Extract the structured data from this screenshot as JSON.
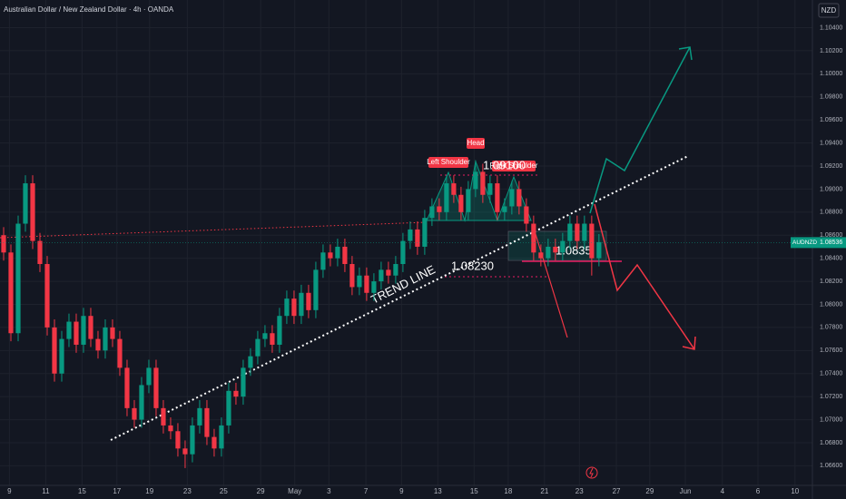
{
  "chart_data": {
    "type": "candlestick",
    "title": "Australian Dollar / New Zealand Dollar · 4h · OANDA",
    "currency": "NZD",
    "symbol": "AUDNZD",
    "last_price": 1.08536,
    "up_color": "#089981",
    "down_color": "#f23645",
    "grid": true,
    "xlim": [
      -0.5,
      111.4
    ],
    "ylim": [
      1.0643,
      1.1064
    ],
    "xticks": [
      {
        "value": 0.8,
        "label": "9"
      },
      {
        "value": 5.8,
        "label": "11"
      },
      {
        "value": 10.8,
        "label": "15"
      },
      {
        "value": 15.6,
        "label": "17"
      },
      {
        "value": 20.1,
        "label": "19"
      },
      {
        "value": 25.3,
        "label": "23"
      },
      {
        "value": 30.3,
        "label": "25"
      },
      {
        "value": 35.4,
        "label": "29"
      },
      {
        "value": 40.1,
        "label": "May"
      },
      {
        "value": 44.8,
        "label": "3"
      },
      {
        "value": 49.9,
        "label": "7"
      },
      {
        "value": 54.8,
        "label": "9"
      },
      {
        "value": 59.8,
        "label": "13"
      },
      {
        "value": 64.8,
        "label": "15"
      },
      {
        "value": 69.5,
        "label": "18"
      },
      {
        "value": 74.5,
        "label": "21"
      },
      {
        "value": 79.3,
        "label": "23"
      },
      {
        "value": 84.4,
        "label": "27"
      },
      {
        "value": 89,
        "label": "29"
      },
      {
        "value": 93.9,
        "label": "Jun"
      },
      {
        "value": 99,
        "label": "4"
      },
      {
        "value": 103.9,
        "label": "6"
      },
      {
        "value": 109,
        "label": "10"
      }
    ],
    "yticks": [
      {
        "value": 1.104,
        "label": "1.10400"
      },
      {
        "value": 1.102,
        "label": "1.10200"
      },
      {
        "value": 1.1,
        "label": "1.10000"
      },
      {
        "value": 1.098,
        "label": "1.09800"
      },
      {
        "value": 1.096,
        "label": "1.09600"
      },
      {
        "value": 1.094,
        "label": "1.09400"
      },
      {
        "value": 1.092,
        "label": "1.09200"
      },
      {
        "value": 1.09,
        "label": "1.09000"
      },
      {
        "value": 1.088,
        "label": "1.08800"
      },
      {
        "value": 1.086,
        "label": "1.08600"
      },
      {
        "value": 1.084,
        "label": "1.08400"
      },
      {
        "value": 1.082,
        "label": "1.08200"
      },
      {
        "value": 1.08,
        "label": "1.08000"
      },
      {
        "value": 1.078,
        "label": "1.07800"
      },
      {
        "value": 1.076,
        "label": "1.07600"
      },
      {
        "value": 1.074,
        "label": "1.07400"
      },
      {
        "value": 1.072,
        "label": "1.07200"
      },
      {
        "value": 1.07,
        "label": "1.07000"
      },
      {
        "value": 1.068,
        "label": "1.06800"
      },
      {
        "value": 1.066,
        "label": "1.06600"
      }
    ],
    "annotations": {
      "left_shoulder": "Left Shoulder",
      "head": "Head",
      "right_shoulder": "Right Shoulder",
      "resistance": "1.09100",
      "support": "1.08230",
      "target": "1.0835",
      "trend_line": "TREND LINE"
    },
    "candles": [
      [
        1.086,
        1.0867,
        1.0838,
        1.0845
      ],
      [
        1.0845,
        1.0852,
        1.0768,
        1.0775
      ],
      [
        1.0775,
        1.0877,
        1.0768,
        1.087
      ],
      [
        1.087,
        1.0912,
        1.0863,
        1.0905
      ],
      [
        1.0905,
        1.0912,
        1.0848,
        1.0855
      ],
      [
        1.0855,
        1.0862,
        1.0828,
        1.0835
      ],
      [
        1.0835,
        1.0842,
        1.0773,
        1.078
      ],
      [
        1.078,
        1.0787,
        1.0733,
        1.074
      ],
      [
        1.074,
        1.0777,
        1.0733,
        1.077
      ],
      [
        1.077,
        1.0792,
        1.0763,
        1.0785
      ],
      [
        1.0785,
        1.0792,
        1.0758,
        1.0765
      ],
      [
        1.0765,
        1.0797,
        1.0758,
        1.079
      ],
      [
        1.079,
        1.0797,
        1.0763,
        1.077
      ],
      [
        1.077,
        1.0777,
        1.0753,
        1.076
      ],
      [
        1.076,
        1.0787,
        1.0753,
        1.078
      ],
      [
        1.078,
        1.0787,
        1.0763,
        1.077
      ],
      [
        1.077,
        1.0777,
        1.0738,
        1.0745
      ],
      [
        1.0745,
        1.0752,
        1.0703,
        1.071
      ],
      [
        1.071,
        1.0717,
        1.0693,
        1.07
      ],
      [
        1.07,
        1.0737,
        1.0693,
        1.073
      ],
      [
        1.073,
        1.0752,
        1.0723,
        1.0745
      ],
      [
        1.0745,
        1.0752,
        1.0703,
        1.071
      ],
      [
        1.071,
        1.0717,
        1.0688,
        1.0695
      ],
      [
        1.0695,
        1.0702,
        1.0683,
        1.069
      ],
      [
        1.069,
        1.0697,
        1.0668,
        1.0675
      ],
      [
        1.0675,
        1.0682,
        1.0658,
        1.067
      ],
      [
        1.067,
        1.0702,
        1.0663,
        1.0695
      ],
      [
        1.0695,
        1.0717,
        1.0688,
        1.071
      ],
      [
        1.071,
        1.0717,
        1.0678,
        1.0685
      ],
      [
        1.0685,
        1.0692,
        1.0668,
        1.0675
      ],
      [
        1.0675,
        1.0702,
        1.0668,
        1.0695
      ],
      [
        1.0695,
        1.0732,
        1.0688,
        1.0725
      ],
      [
        1.0725,
        1.0732,
        1.0713,
        1.072
      ],
      [
        1.072,
        1.0752,
        1.0713,
        1.0745
      ],
      [
        1.0745,
        1.0762,
        1.0738,
        1.0755
      ],
      [
        1.0755,
        1.0777,
        1.0748,
        1.077
      ],
      [
        1.077,
        1.0782,
        1.0763,
        1.0775
      ],
      [
        1.0775,
        1.0782,
        1.0758,
        1.0765
      ],
      [
        1.0765,
        1.0797,
        1.0758,
        1.079
      ],
      [
        1.079,
        1.0812,
        1.0783,
        1.0805
      ],
      [
        1.0805,
        1.0812,
        1.0783,
        1.079
      ],
      [
        1.079,
        1.0817,
        1.0783,
        1.081
      ],
      [
        1.081,
        1.0817,
        1.0788,
        1.0795
      ],
      [
        1.0795,
        1.0837,
        1.0788,
        1.083
      ],
      [
        1.083,
        1.0852,
        1.0823,
        1.0845
      ],
      [
        1.0845,
        1.0852,
        1.0833,
        1.084
      ],
      [
        1.084,
        1.0857,
        1.0833,
        1.085
      ],
      [
        1.085,
        1.0857,
        1.0828,
        1.0835
      ],
      [
        1.0835,
        1.0842,
        1.0808,
        1.0815
      ],
      [
        1.0815,
        1.0832,
        1.0808,
        1.0825
      ],
      [
        1.0825,
        1.0832,
        1.0803,
        1.081
      ],
      [
        1.081,
        1.0827,
        1.0803,
        1.082
      ],
      [
        1.082,
        1.0837,
        1.0813,
        1.083
      ],
      [
        1.083,
        1.0837,
        1.0818,
        1.0825
      ],
      [
        1.0825,
        1.0842,
        1.0818,
        1.0835
      ],
      [
        1.0835,
        1.0862,
        1.0828,
        1.0855
      ],
      [
        1.0855,
        1.0872,
        1.0848,
        1.0865
      ],
      [
        1.0865,
        1.0872,
        1.0843,
        1.085
      ],
      [
        1.085,
        1.0882,
        1.0843,
        1.0875
      ],
      [
        1.0875,
        1.0892,
        1.0868,
        1.0885
      ],
      [
        1.0885,
        1.0892,
        1.0873,
        1.088
      ],
      [
        1.088,
        1.0912,
        1.0873,
        1.0905
      ],
      [
        1.0905,
        1.0912,
        1.0888,
        1.0895
      ],
      [
        1.0895,
        1.0902,
        1.0873,
        1.088
      ],
      [
        1.088,
        1.0907,
        1.0873,
        1.09
      ],
      [
        1.09,
        1.0925,
        1.0893,
        1.0915
      ],
      [
        1.0915,
        1.0922,
        1.0888,
        1.0895
      ],
      [
        1.0895,
        1.0912,
        1.0888,
        1.0905
      ],
      [
        1.0905,
        1.0912,
        1.0873,
        1.088
      ],
      [
        1.088,
        1.0892,
        1.0873,
        1.0885
      ],
      [
        1.0885,
        1.0907,
        1.0878,
        1.09
      ],
      [
        1.09,
        1.0907,
        1.0878,
        1.0885
      ],
      [
        1.0885,
        1.0892,
        1.0863,
        1.087
      ],
      [
        1.087,
        1.0877,
        1.0838,
        1.0845
      ],
      [
        1.0845,
        1.0852,
        1.0833,
        1.084
      ],
      [
        1.084,
        1.0857,
        1.0833,
        1.085
      ],
      [
        1.085,
        1.0857,
        1.0838,
        1.0845
      ],
      [
        1.0845,
        1.0862,
        1.0838,
        1.0855
      ],
      [
        1.0855,
        1.0877,
        1.0848,
        1.087
      ],
      [
        1.087,
        1.0877,
        1.0848,
        1.0855
      ],
      [
        1.0855,
        1.0877,
        1.0848,
        1.087
      ],
      [
        1.087,
        1.0877,
        1.0825,
        1.084
      ],
      [
        1.084,
        1.0861,
        1.0833,
        1.0854
      ]
    ]
  }
}
